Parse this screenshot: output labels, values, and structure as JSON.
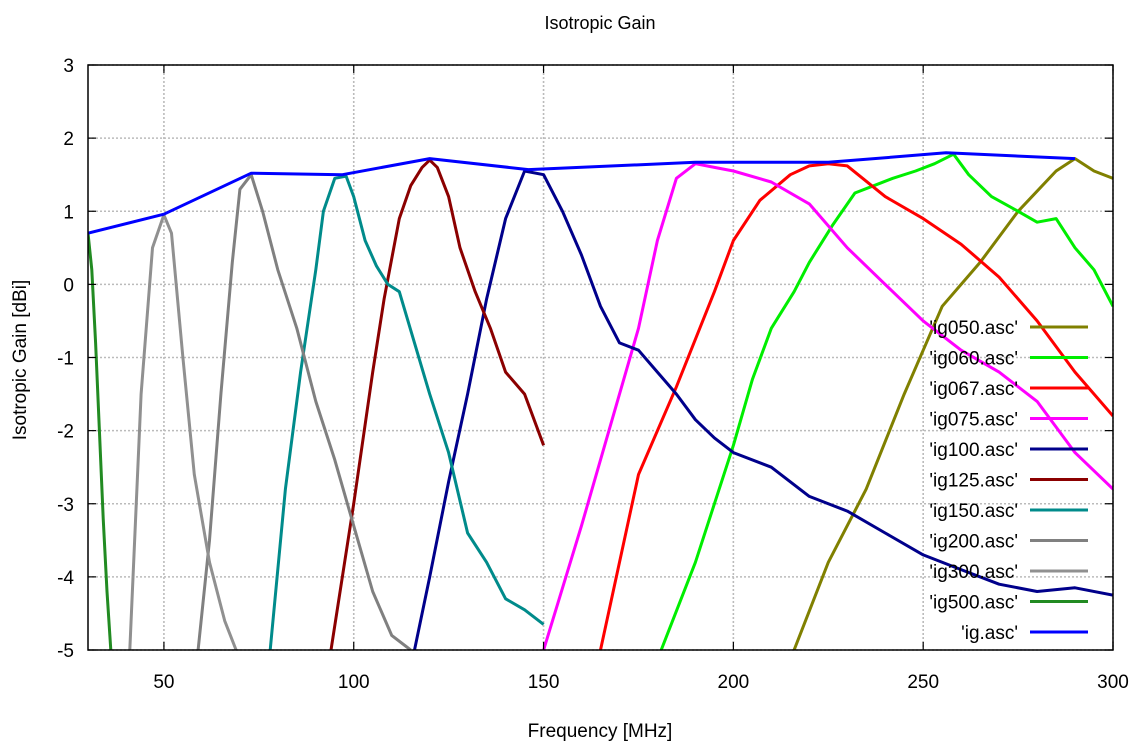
{
  "chart_data": {
    "type": "line",
    "title": "Isotropic Gain",
    "xlabel": "Frequency [MHz]",
    "ylabel": "Isotropic Gain [dBi]",
    "xlim": [
      30,
      300
    ],
    "ylim": [
      -5,
      3
    ],
    "xticks": [
      50,
      100,
      150,
      200,
      250,
      300
    ],
    "yticks": [
      3,
      2,
      1,
      0,
      -1,
      -2,
      -3,
      -4,
      -5
    ],
    "grid": true,
    "legend_position": "bottom-right",
    "series": [
      {
        "name": "'ig050.asc'",
        "color": "#808000",
        "x": [
          216,
          225,
          235,
          245,
          255,
          265,
          275,
          285,
          290,
          295,
          300
        ],
        "y": [
          -5,
          -3.8,
          -2.8,
          -1.5,
          -0.3,
          0.3,
          1.0,
          1.55,
          1.72,
          1.55,
          1.45
        ]
      },
      {
        "name": "'ig060.asc'",
        "color": "#00ee00",
        "x": [
          181,
          190,
          200,
          205,
          210,
          216,
          220,
          226,
          232,
          237,
          242,
          248,
          253,
          258,
          262,
          268,
          275,
          280,
          285,
          290,
          295,
          300
        ],
        "y": [
          -5,
          -3.8,
          -2.2,
          -1.3,
          -0.6,
          -0.1,
          0.3,
          0.8,
          1.25,
          1.35,
          1.45,
          1.55,
          1.65,
          1.78,
          1.5,
          1.2,
          1.0,
          0.85,
          0.9,
          0.5,
          0.2,
          -0.3
        ]
      },
      {
        "name": "'ig067.asc'",
        "color": "#ff0000",
        "x": [
          165,
          175,
          185,
          195,
          200,
          207,
          215,
          220,
          225,
          230,
          240,
          250,
          260,
          270,
          280,
          290,
          300
        ],
        "y": [
          -5,
          -2.6,
          -1.4,
          -0.1,
          0.6,
          1.15,
          1.5,
          1.62,
          1.65,
          1.62,
          1.2,
          0.9,
          0.55,
          0.1,
          -0.5,
          -1.2,
          -1.8
        ]
      },
      {
        "name": "'ig075.asc'",
        "color": "#ff00ff",
        "x": [
          150,
          160,
          170,
          175,
          180,
          185,
          190,
          195,
          200,
          210,
          220,
          230,
          240,
          250,
          260,
          270,
          280,
          290,
          300
        ],
        "y": [
          -5,
          -3.3,
          -1.5,
          -0.6,
          0.6,
          1.45,
          1.65,
          1.6,
          1.55,
          1.4,
          1.1,
          0.5,
          0.0,
          -0.5,
          -0.9,
          -1.2,
          -1.6,
          -2.3,
          -2.8
        ]
      },
      {
        "name": "'ig100.asc'",
        "color": "#00008b",
        "x": [
          116,
          120,
          125,
          130,
          135,
          140,
          145,
          150,
          155,
          160,
          165,
          170,
          175,
          180,
          185,
          190,
          195,
          200,
          210,
          220,
          230,
          240,
          250,
          260,
          270,
          280,
          290,
          300
        ],
        "y": [
          -5,
          -4.0,
          -2.7,
          -1.5,
          -0.2,
          0.9,
          1.55,
          1.5,
          1.0,
          0.4,
          -0.3,
          -0.8,
          -0.9,
          -1.2,
          -1.5,
          -1.85,
          -2.1,
          -2.3,
          -2.5,
          -2.9,
          -3.1,
          -3.4,
          -3.7,
          -3.9,
          -4.1,
          -4.2,
          -4.15,
          -4.25
        ]
      },
      {
        "name": "'ig125.asc'",
        "color": "#8b0000",
        "x": [
          94,
          100,
          105,
          108,
          112,
          115,
          118,
          120,
          122,
          125,
          128,
          132,
          136,
          140,
          145,
          150
        ],
        "y": [
          -5,
          -3.0,
          -1.2,
          -0.2,
          0.9,
          1.35,
          1.6,
          1.7,
          1.6,
          1.2,
          0.5,
          -0.1,
          -0.6,
          -1.2,
          -1.5,
          -2.2
        ]
      },
      {
        "name": "'ig150.asc'",
        "color": "#008b8b",
        "x": [
          78,
          82,
          86,
          90,
          92,
          95,
          98,
          100,
          103,
          106,
          109,
          112,
          116,
          120,
          125,
          130,
          135,
          140,
          145,
          150
        ],
        "y": [
          -5,
          -2.8,
          -1.2,
          0.2,
          1.0,
          1.45,
          1.48,
          1.2,
          0.6,
          0.25,
          0.0,
          -0.1,
          -0.8,
          -1.5,
          -2.3,
          -3.4,
          -3.8,
          -4.3,
          -4.45,
          -4.65
        ]
      },
      {
        "name": "'ig200.asc'",
        "color": "#808080",
        "x": [
          59,
          62,
          65,
          68,
          70,
          73,
          76,
          80,
          85,
          90,
          95,
          100,
          105,
          110,
          115
        ],
        "y": [
          -5,
          -3.5,
          -1.5,
          0.3,
          1.3,
          1.5,
          1.0,
          0.2,
          -0.6,
          -1.6,
          -2.4,
          -3.3,
          -4.2,
          -4.8,
          -5
        ]
      },
      {
        "name": "'ig300.asc'",
        "color": "#909090",
        "x": [
          41,
          44,
          47,
          50,
          52,
          55,
          58,
          62,
          66,
          69
        ],
        "y": [
          -5,
          -1.5,
          0.5,
          0.95,
          0.7,
          -1.0,
          -2.6,
          -3.8,
          -4.6,
          -5
        ]
      },
      {
        "name": "'ig500.asc'",
        "color": "#228b22",
        "x": [
          30,
          31,
          32,
          33,
          34,
          35,
          36
        ],
        "y": [
          0.7,
          0.2,
          -0.8,
          -2.0,
          -3.2,
          -4.2,
          -5
        ]
      },
      {
        "name": "'ig.asc'",
        "color": "#0000ff",
        "x": [
          30,
          50,
          73,
          97,
          120,
          146,
          190,
          225,
          256,
          290
        ],
        "y": [
          0.7,
          0.96,
          1.52,
          1.5,
          1.72,
          1.57,
          1.67,
          1.67,
          1.8,
          1.72
        ]
      }
    ]
  }
}
